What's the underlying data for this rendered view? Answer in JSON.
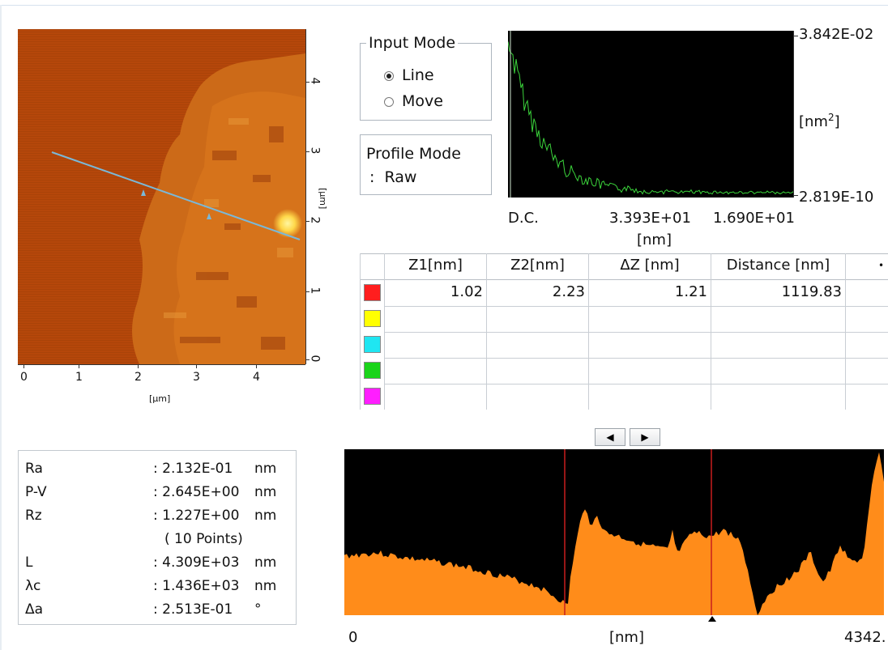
{
  "afm_image": {
    "x_axis": {
      "ticks": [
        "0",
        "1",
        "2",
        "3",
        "4"
      ],
      "unit": "[µm]"
    },
    "y_axis": {
      "ticks": [
        "0",
        "1",
        "2",
        "3",
        "4"
      ],
      "unit": "[µm]"
    },
    "colors": {
      "substrate": "#b5470a",
      "flake": "#d7741c",
      "highlight": "#ffd84a",
      "line": "#7ab8d8"
    }
  },
  "input_mode": {
    "title": "Input Mode",
    "options": [
      {
        "label": "Line",
        "selected": true
      },
      {
        "label": "Move",
        "selected": false
      }
    ]
  },
  "profile_mode": {
    "line1": "Profile Mode",
    "line2": ":  Raw"
  },
  "spectrum": {
    "y_max": "3.842E-02",
    "y_min": "2.819E-10",
    "y_unit": "[nm",
    "y_unit_sup": "2",
    "y_unit_end": "]",
    "x_ticks": [
      "D.C.",
      "3.393E+01",
      "1.690E+01"
    ],
    "x_unit": "[nm]",
    "line_color": "#3bd43b"
  },
  "table": {
    "headers": [
      "Z1[nm]",
      "Z2[nm]",
      "ΔZ [nm]",
      "Distance [nm]"
    ],
    "rows": [
      {
        "color": "#ff1e1e",
        "z1": "1.02",
        "z2": "2.23",
        "dz": "1.21",
        "distance": "1119.83"
      },
      {
        "color": "#ffff00",
        "z1": "",
        "z2": "",
        "dz": "",
        "distance": ""
      },
      {
        "color": "#1fe6f2",
        "z1": "",
        "z2": "",
        "dz": "",
        "distance": ""
      },
      {
        "color": "#1ad41a",
        "z1": "",
        "z2": "",
        "dz": "",
        "distance": ""
      },
      {
        "color": "#ff1eff",
        "z1": "",
        "z2": "",
        "dz": "",
        "distance": ""
      }
    ]
  },
  "params": [
    {
      "name": "Ra",
      "value": ": 2.132E-01",
      "unit": "nm"
    },
    {
      "name": "P-V",
      "value": ": 2.645E+00",
      "unit": "nm"
    },
    {
      "name": "Rz",
      "value": ": 1.227E+00",
      "unit": "nm"
    },
    {
      "name": "",
      "value": "( 10 Points)",
      "unit": ""
    },
    {
      "name": "L",
      "value": ": 4.309E+03",
      "unit": "nm"
    },
    {
      "name": "λc",
      "value": ": 1.436E+03",
      "unit": "nm"
    },
    {
      "name": "Δa",
      "value": ": 2.513E-01",
      "unit": "°"
    }
  ],
  "nav": {
    "prev": "◀",
    "next": "▶"
  },
  "profile": {
    "x_min": "0",
    "x_max": "4342.",
    "x_unit": "[nm]",
    "fill_color": "#ff8c1a",
    "cursor_color": "#c81e1e"
  }
}
